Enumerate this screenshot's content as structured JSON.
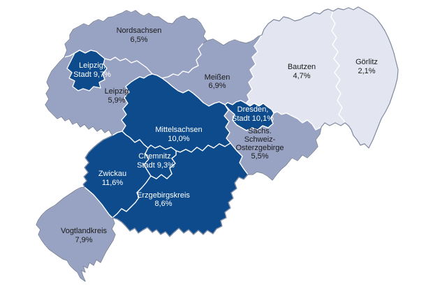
{
  "figure": {
    "type": "choropleth-map",
    "subject": "Saxony districts map with percentage values",
    "unit": "%",
    "decimal_separator": ",",
    "colors": {
      "high": "#0E4B8C",
      "mid": "#98A3C3",
      "low": "#E3E6F0",
      "border_inner": "#FFFFFF",
      "border_outer": "#7D879E",
      "label_dark": "#1A1A1A",
      "label_light": "#FFFFFF",
      "background": "#FFFFFF"
    },
    "regions": [
      {
        "id": "nordsachsen",
        "name": "Nordsachsen",
        "value": "6,5%",
        "class": "mid",
        "lines": [
          "Nordsachsen",
          "6,5%"
        ]
      },
      {
        "id": "leipzig",
        "name": "Leipzig",
        "value": "5,9%",
        "class": "mid",
        "lines": [
          "Leipzig",
          "5,9%"
        ]
      },
      {
        "id": "meissen",
        "name": "Meißen",
        "value": "6,9%",
        "class": "mid",
        "lines": [
          "Meißen",
          "6,9%"
        ]
      },
      {
        "id": "bautzen",
        "name": "Bautzen",
        "value": "4,7%",
        "class": "low",
        "lines": [
          "Bautzen",
          "4,7%"
        ]
      },
      {
        "id": "goerlitz",
        "name": "Görlitz",
        "value": "2,1%",
        "class": "low",
        "lines": [
          "Görlitz",
          "2,1%"
        ]
      },
      {
        "id": "saechsische-schweiz-osterzgebirge",
        "name": "Sächs. Schweiz-Osterzgebirge",
        "value": "5,5%",
        "class": "mid",
        "lines": [
          "Sächs.",
          "Schweiz-",
          "Osterzgebirge",
          "5,5%"
        ]
      },
      {
        "id": "vogtlandkreis",
        "name": "Vogtlandkreis",
        "value": "7,9%",
        "class": "mid",
        "lines": [
          "Vogtlandkreis",
          "7,9%"
        ]
      },
      {
        "id": "mittelsachsen",
        "name": "Mittelsachsen",
        "value": "10,0%",
        "class": "high",
        "lines": [
          "Mittelsachsen",
          "10,0%"
        ]
      },
      {
        "id": "zwickau",
        "name": "Zwickau",
        "value": "11,6%",
        "class": "high",
        "lines": [
          "Zwickau",
          "11,6%"
        ]
      },
      {
        "id": "erzgebirgskreis",
        "name": "Erzgebirgskreis",
        "value": "8,6%",
        "class": "high",
        "lines": [
          "Erzgebirgskreis",
          "8,6%"
        ]
      },
      {
        "id": "leipzig-stadt",
        "name": "Leipzig, Stadt",
        "value": "9,7%",
        "class": "high",
        "lines": [
          "Leipzig,",
          "Stadt 9,7%"
        ]
      },
      {
        "id": "dresden-stadt",
        "name": "Dresden, Stadt",
        "value": "10,1%",
        "class": "high",
        "lines": [
          "Dresden,",
          "Stadt 10,1%"
        ]
      },
      {
        "id": "chemnitz-stadt",
        "name": "Chemnitz, Stadt",
        "value": "9,3%",
        "class": "high",
        "lines": [
          "Chemnitz,",
          "Stadt 9,3%"
        ]
      }
    ]
  }
}
